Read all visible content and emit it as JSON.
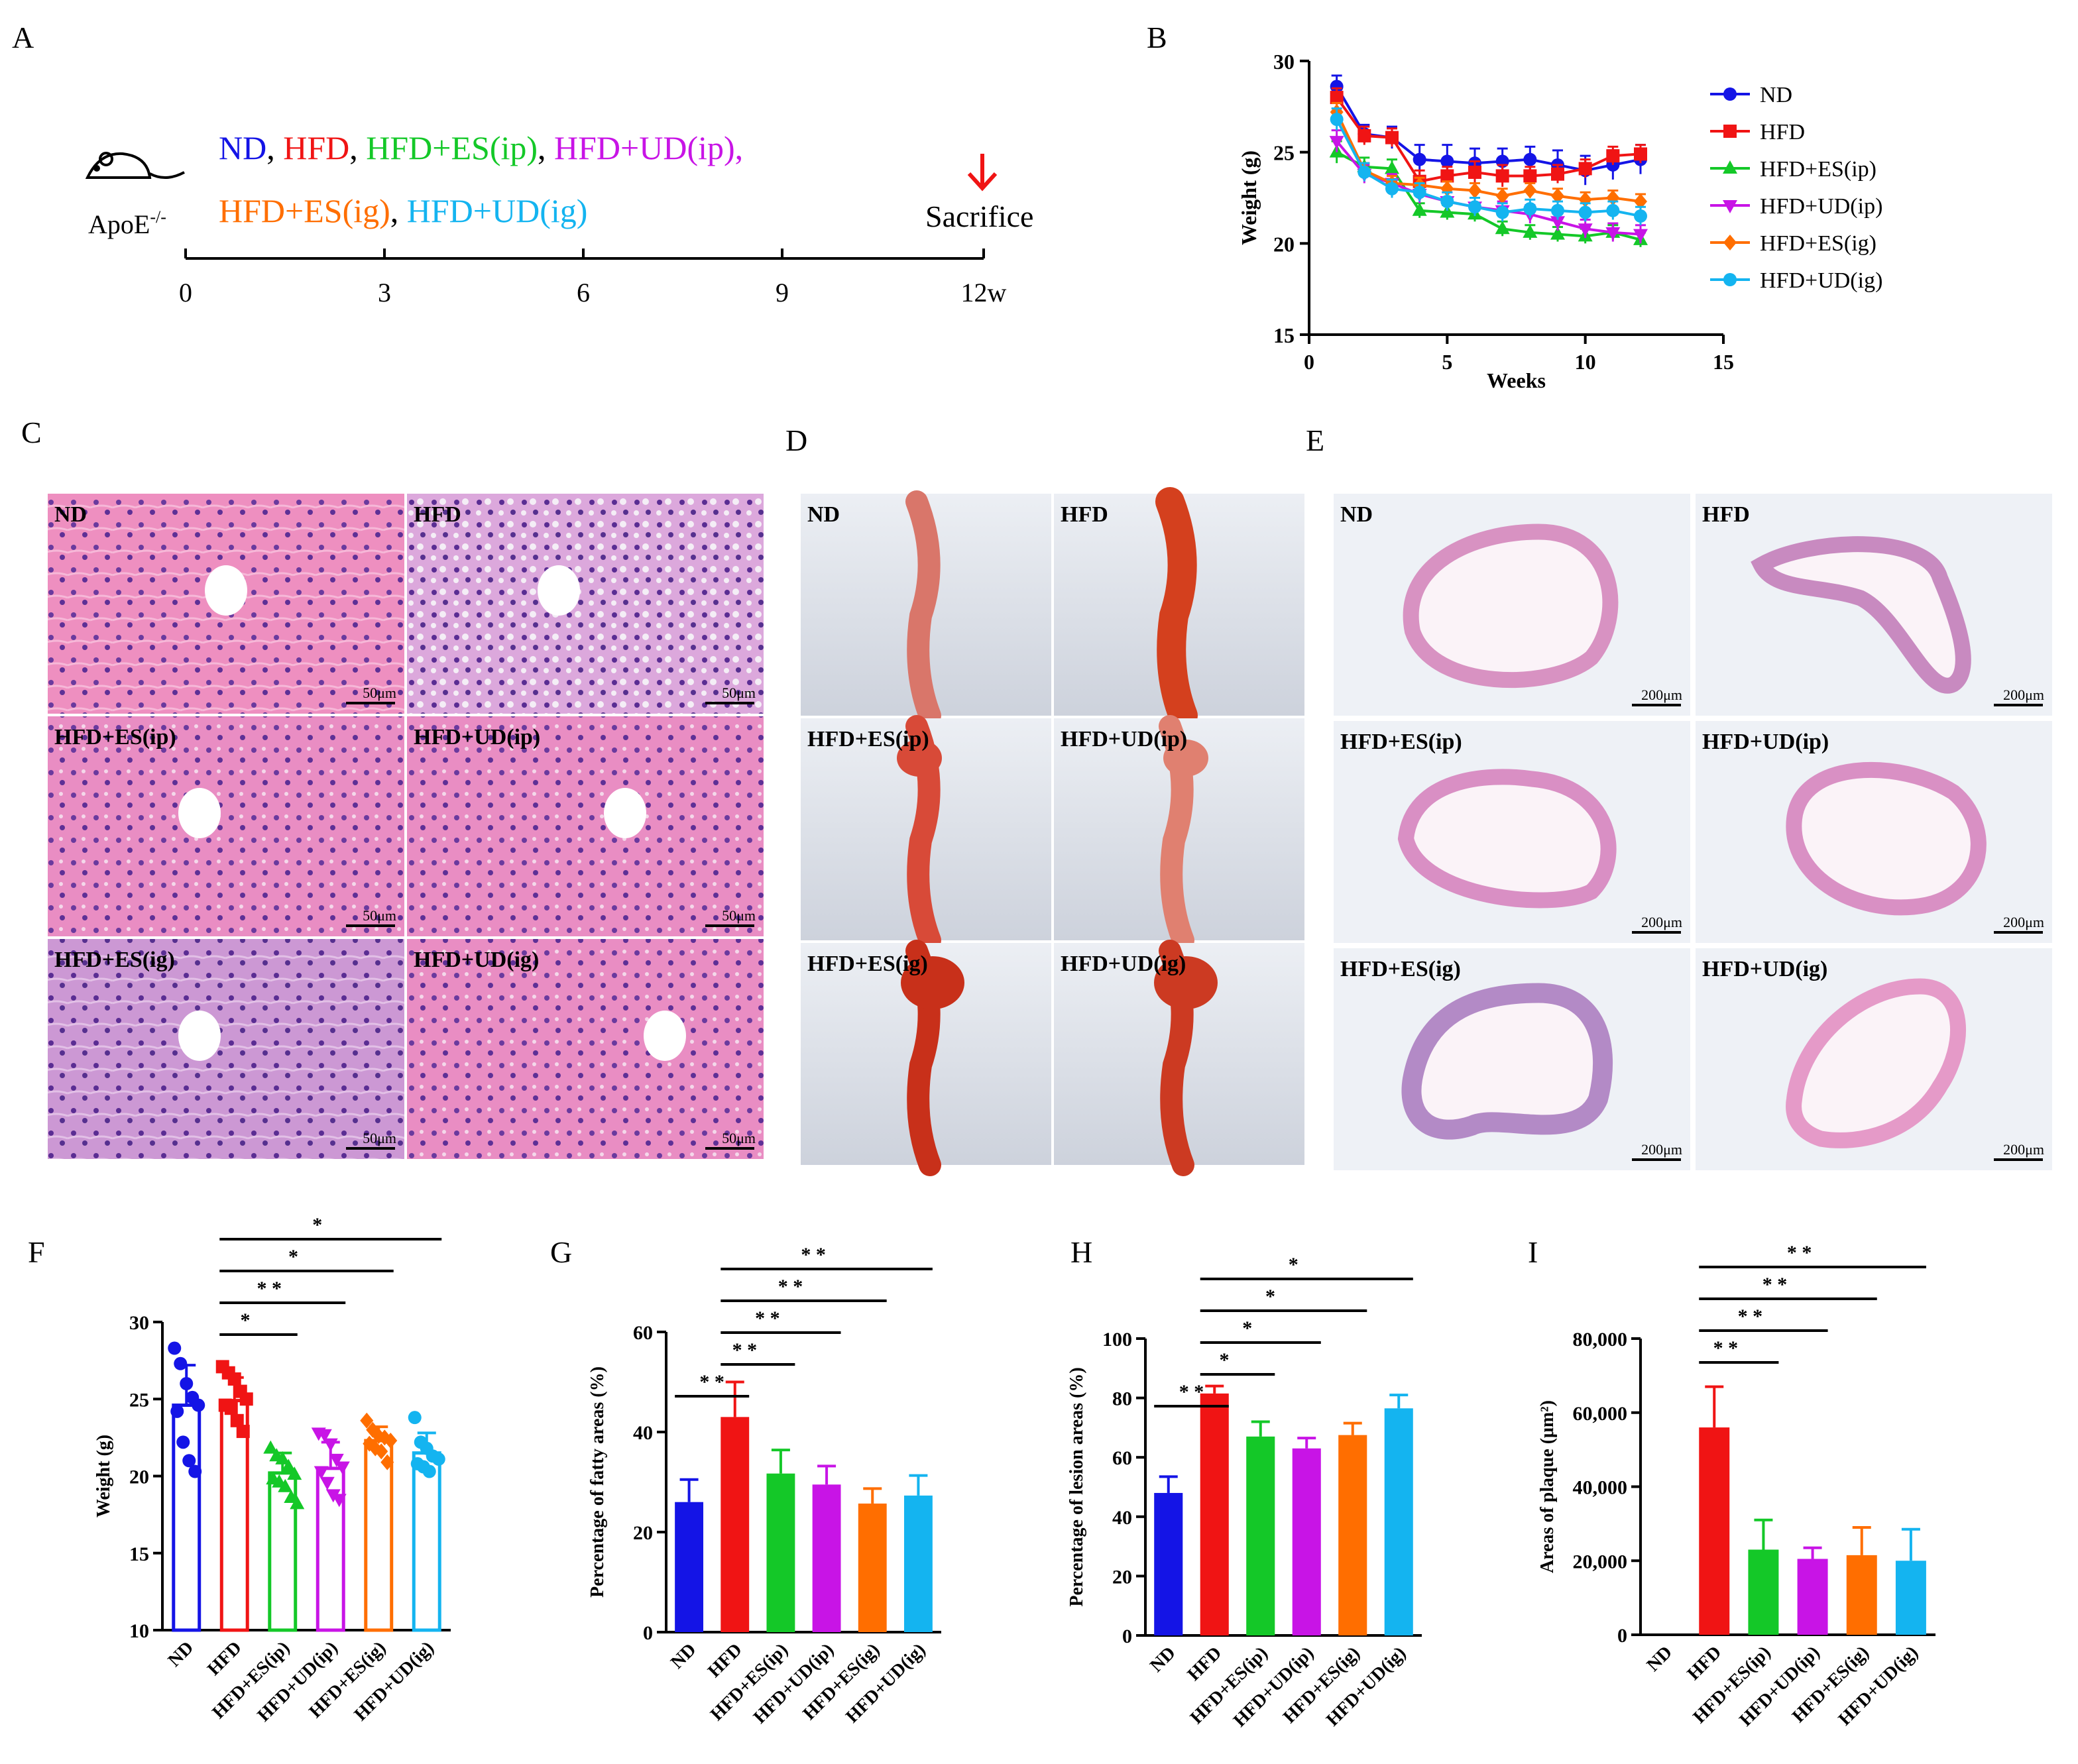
{
  "colors": {
    "ND": "#1414e6",
    "HFD": "#f01414",
    "ESip": "#14c828",
    "UDip": "#c814e6",
    "ESig": "#ff6e00",
    "UDig": "#14b4f0",
    "star": "#000000",
    "arrow": "#f01414"
  },
  "panel_letters": {
    "A": "A",
    "B": "B",
    "C": "C",
    "D": "D",
    "E": "E",
    "F": "F",
    "G": "G",
    "H": "H",
    "I": "I"
  },
  "panelA": {
    "groups_line1": [
      {
        "text": "ND",
        "color": "ND"
      },
      {
        "text": ", ",
        "color": "star"
      },
      {
        "text": "HFD",
        "color": "HFD"
      },
      {
        "text": ", ",
        "color": "star"
      },
      {
        "text": "HFD+ES(ip)",
        "color": "ESip"
      },
      {
        "text": ", ",
        "color": "star"
      },
      {
        "text": "HFD+UD(ip)",
        "color": "UDip"
      },
      {
        "text": ",",
        "color": "UDip"
      }
    ],
    "groups_line2": [
      {
        "text": "HFD+ES(ig)",
        "color": "ESig"
      },
      {
        "text": ", ",
        "color": "star"
      },
      {
        "text": "HFD+UD(ig)",
        "color": "UDig"
      }
    ],
    "mouse_label": "ApoE",
    "mouse_sup": "-/-",
    "sacrifice": "Sacrifice",
    "ticks": [
      "0",
      "3",
      "6",
      "9",
      "12w"
    ]
  },
  "panelB": {
    "chart_data": {
      "type": "line",
      "xlabel": "Weeks",
      "ylabel": "Weight (g)",
      "xlim": [
        0,
        15
      ],
      "ylim": [
        15,
        30
      ],
      "xticks": [
        "0",
        "5",
        "10",
        "15"
      ],
      "yticks": [
        "15",
        "20",
        "25",
        "30"
      ],
      "x": [
        1,
        2,
        3,
        4,
        5,
        6,
        7,
        8,
        9,
        10,
        11,
        12
      ],
      "series": [
        {
          "name": "ND",
          "key": "ND",
          "marker": "circle",
          "values": [
            28.6,
            26.0,
            25.8,
            24.6,
            24.5,
            24.4,
            24.5,
            24.6,
            24.3,
            24.0,
            24.3,
            24.6
          ],
          "err": [
            0.6,
            0.5,
            0.6,
            0.8,
            0.9,
            0.8,
            0.7,
            0.7,
            0.8,
            0.8,
            0.8,
            0.8
          ]
        },
        {
          "name": "HFD",
          "key": "HFD",
          "marker": "square",
          "values": [
            28.0,
            25.9,
            25.8,
            23.4,
            23.7,
            23.9,
            23.7,
            23.7,
            23.8,
            24.1,
            24.8,
            24.9
          ],
          "err": [
            0.5,
            0.5,
            0.5,
            0.6,
            0.5,
            0.6,
            0.6,
            0.5,
            0.5,
            0.5,
            0.5,
            0.5
          ]
        },
        {
          "name": "HFD+ES(ip)",
          "key": "ESip",
          "marker": "triangle-up",
          "values": [
            25.0,
            24.2,
            24.1,
            21.8,
            21.7,
            21.6,
            20.8,
            20.6,
            20.5,
            20.4,
            20.6,
            20.2
          ],
          "err": [
            0.6,
            0.5,
            0.5,
            0.4,
            0.4,
            0.4,
            0.4,
            0.4,
            0.4,
            0.4,
            0.4,
            0.4
          ]
        },
        {
          "name": "HFD+UD(ip)",
          "key": "UDip",
          "marker": "triangle-down",
          "values": [
            25.6,
            23.8,
            23.3,
            22.7,
            22.3,
            22.0,
            21.8,
            21.6,
            21.2,
            20.8,
            20.6,
            20.5
          ],
          "err": [
            0.6,
            0.5,
            0.5,
            0.5,
            0.5,
            0.5,
            0.5,
            0.5,
            0.5,
            0.5,
            0.5,
            0.5
          ]
        },
        {
          "name": "HFD+ES(ig)",
          "key": "ESig",
          "marker": "diamond",
          "values": [
            27.2,
            24.0,
            23.3,
            23.2,
            23.0,
            22.9,
            22.6,
            22.9,
            22.6,
            22.4,
            22.5,
            22.3
          ],
          "err": [
            0.5,
            0.4,
            0.4,
            0.4,
            0.4,
            0.4,
            0.4,
            0.4,
            0.4,
            0.4,
            0.4,
            0.4
          ]
        },
        {
          "name": "HFD+UD(ig)",
          "key": "UDig",
          "marker": "circle",
          "values": [
            26.8,
            23.9,
            23.0,
            22.8,
            22.3,
            22.0,
            21.7,
            21.9,
            21.8,
            21.7,
            21.8,
            21.5
          ],
          "err": [
            0.6,
            0.5,
            0.5,
            0.5,
            0.5,
            0.5,
            0.5,
            0.5,
            0.5,
            0.5,
            0.5,
            0.5
          ]
        }
      ]
    }
  },
  "panelC": {
    "labels": [
      "ND",
      "HFD",
      "HFD+ES(ip)",
      "HFD+UD(ip)",
      "HFD+ES(ig)",
      "HFD+UD(ig)"
    ],
    "scale": "50μm"
  },
  "panelD": {
    "labels": [
      "ND",
      "HFD",
      "HFD+ES(ip)",
      "HFD+UD(ip)",
      "HFD+ES(ig)",
      "HFD+UD(ig)"
    ]
  },
  "panelE": {
    "labels": [
      "ND",
      "HFD",
      "HFD+ES(ip)",
      "HFD+UD(ip)",
      "HFD+ES(ig)",
      "HFD+UD(ig)"
    ],
    "scale": "200μm"
  },
  "chart_data": [
    {
      "panel": "F",
      "type": "bar",
      "ylabel": "Weight (g)",
      "ylim": [
        10,
        30
      ],
      "yticks": [
        "10",
        "15",
        "20",
        "25",
        "30"
      ],
      "categories": [
        "ND",
        "HFD",
        "HFD+ES(ip)",
        "HFD+UD(ip)",
        "HFD+ES(ig)",
        "HFD+UD(ig)"
      ],
      "values": [
        24.6,
        24.9,
        20.2,
        20.5,
        22.3,
        21.5
      ],
      "err": [
        2.6,
        1.5,
        1.3,
        1.7,
        0.9,
        1.3
      ],
      "filled": false,
      "points": [
        [
          28.3,
          27.3,
          26.0,
          25.1,
          24.6,
          24.2,
          22.2,
          21.0,
          20.3
        ],
        [
          27.1,
          26.7,
          26.3,
          25.5,
          25.0,
          24.6,
          24.4,
          23.6,
          22.9
        ],
        [
          21.8,
          21.3,
          21.1,
          20.6,
          20.1,
          19.8,
          19.6,
          19.3,
          18.6,
          18.2
        ],
        [
          22.8,
          22.7,
          22.1,
          21.1,
          20.6,
          20.3,
          19.6,
          18.8,
          18.5
        ],
        [
          23.6,
          23.0,
          22.6,
          22.5,
          22.3,
          22.1,
          21.8,
          21.6,
          20.9
        ],
        [
          23.8,
          22.2,
          21.8,
          21.3,
          21.1,
          20.8,
          20.6,
          20.3
        ]
      ],
      "sig": [
        {
          "from": 1,
          "to": 2,
          "label": "*"
        },
        {
          "from": 1,
          "to": 3,
          "label": "* *"
        },
        {
          "from": 1,
          "to": 4,
          "label": "*"
        },
        {
          "from": 1,
          "to": 5,
          "label": "*"
        }
      ]
    },
    {
      "panel": "G",
      "type": "bar",
      "ylabel": "Percentage of fatty areas (%)",
      "ylim": [
        0,
        60
      ],
      "yticks": [
        "0",
        "20",
        "40",
        "60"
      ],
      "categories": [
        "ND",
        "HFD",
        "HFD+ES(ip)",
        "HFD+UD(ip)",
        "HFD+ES(ig)",
        "HFD+UD(ig)"
      ],
      "values": [
        26,
        43,
        31.7,
        29.5,
        25.7,
        27.3
      ],
      "err": [
        4.5,
        7,
        4.7,
        3.7,
        3.0,
        4.0
      ],
      "filled": true,
      "sig": [
        {
          "from": 0,
          "to": 1,
          "label": "* *"
        },
        {
          "from": 1,
          "to": 2,
          "label": "* *"
        },
        {
          "from": 1,
          "to": 3,
          "label": "* *"
        },
        {
          "from": 1,
          "to": 4,
          "label": "* *"
        },
        {
          "from": 1,
          "to": 5,
          "label": "* *"
        }
      ]
    },
    {
      "panel": "H",
      "type": "bar",
      "ylabel": "Percentage of lesion areas (%)",
      "ylim": [
        0,
        100
      ],
      "yticks": [
        "0",
        "20",
        "40",
        "60",
        "80",
        "100"
      ],
      "categories": [
        "ND",
        "HFD",
        "HFD+ES(ip)",
        "HFD+UD(ip)",
        "HFD+ES(ig)",
        "HFD+UD(ig)"
      ],
      "values": [
        48,
        81.5,
        67,
        63,
        67.5,
        76.5
      ],
      "err": [
        5.5,
        2.5,
        5,
        3.5,
        4,
        4.5
      ],
      "filled": true,
      "sig": [
        {
          "from": 0,
          "to": 1,
          "label": "* *"
        },
        {
          "from": 1,
          "to": 2,
          "label": "*"
        },
        {
          "from": 1,
          "to": 3,
          "label": "*"
        },
        {
          "from": 1,
          "to": 4,
          "label": "*"
        },
        {
          "from": 1,
          "to": 5,
          "label": "*"
        }
      ]
    },
    {
      "panel": "I",
      "type": "bar",
      "ylabel": "Areas of plaque (μm²)",
      "ylim": [
        0,
        80000
      ],
      "yticks": [
        "0",
        "20,000",
        "40,000",
        "60,000",
        "80,000"
      ],
      "categories": [
        "ND",
        "HFD",
        "HFD+ES(ip)",
        "HFD+UD(ip)",
        "HFD+ES(ig)",
        "HFD+UD(ig)"
      ],
      "values": [
        0,
        56000,
        23000,
        20500,
        21500,
        20000
      ],
      "err": [
        0,
        11000,
        8000,
        3000,
        7500,
        8500
      ],
      "filled": true,
      "sig": [
        {
          "from": 1,
          "to": 2,
          "label": "* *"
        },
        {
          "from": 1,
          "to": 3,
          "label": "* *"
        },
        {
          "from": 1,
          "to": 4,
          "label": "* *"
        },
        {
          "from": 1,
          "to": 5,
          "label": "* *"
        }
      ]
    }
  ]
}
